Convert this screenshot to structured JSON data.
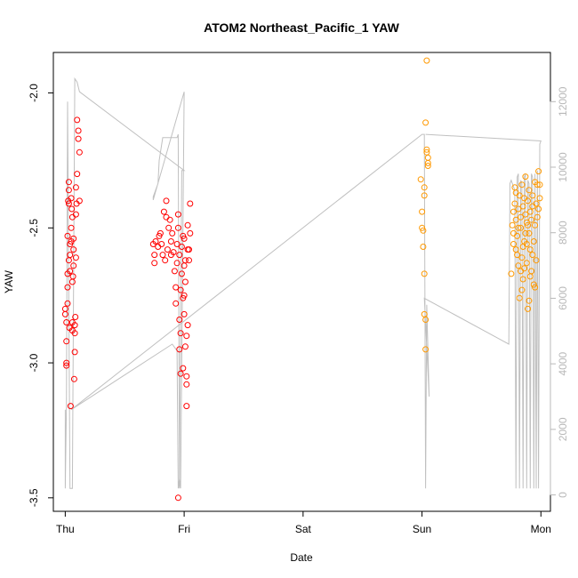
{
  "chart_data": {
    "type": "scatter",
    "title": "ATOM2 Northeast_Pacific_1 YAW",
    "xlabel": "Date",
    "ylabel": "YAW",
    "x_ticks": [
      {
        "day": 0,
        "label": "Thu"
      },
      {
        "day": 1,
        "label": "Fri"
      },
      {
        "day": 2,
        "label": "Sat"
      },
      {
        "day": 3,
        "label": "Sun"
      },
      {
        "day": 4,
        "label": "Mon"
      }
    ],
    "xlim": [
      -0.1,
      4.08
    ],
    "ylim": [
      -3.55,
      -1.85
    ],
    "y_ticks": [
      -3.5,
      -3.0,
      -2.5,
      -2.0
    ],
    "y2lim": [
      -500,
      13500
    ],
    "y2_ticks": [
      0,
      2000,
      4000,
      6000,
      8000,
      10000,
      12000
    ],
    "colors": {
      "red": "#ff0000",
      "orange": "#ff9900",
      "line": "#c0c0c0",
      "axis": "#000000",
      "axis_right": "#b8b8b8"
    },
    "series": [
      {
        "color": "red",
        "points": [
          [
            0.0,
            -2.8
          ],
          [
            0.0,
            -2.82
          ],
          [
            0.01,
            -2.85
          ],
          [
            0.01,
            -2.92
          ],
          [
            0.01,
            -3.0
          ],
          [
            0.01,
            -3.01
          ],
          [
            0.02,
            -2.72
          ],
          [
            0.02,
            -2.67
          ],
          [
            0.02,
            -2.53
          ],
          [
            0.025,
            -2.4
          ],
          [
            0.03,
            -2.41
          ],
          [
            0.03,
            -2.36
          ],
          [
            0.03,
            -2.33
          ],
          [
            0.035,
            -2.87
          ],
          [
            0.04,
            -2.66
          ],
          [
            0.04,
            -2.6
          ],
          [
            0.04,
            -2.56
          ],
          [
            0.045,
            -3.16
          ],
          [
            0.05,
            -2.39
          ],
          [
            0.05,
            -2.5
          ],
          [
            0.05,
            -2.55
          ],
          [
            0.055,
            -2.43
          ],
          [
            0.06,
            -2.88
          ],
          [
            0.06,
            -2.85
          ],
          [
            0.06,
            -2.7
          ],
          [
            0.065,
            -2.68
          ],
          [
            0.07,
            -2.64
          ],
          [
            0.07,
            -2.58
          ],
          [
            0.07,
            -2.54
          ],
          [
            0.075,
            -3.06
          ],
          [
            0.08,
            -2.96
          ],
          [
            0.08,
            -2.89
          ],
          [
            0.08,
            -2.86
          ],
          [
            0.085,
            -2.83
          ],
          [
            0.09,
            -2.61
          ],
          [
            0.09,
            -2.45
          ],
          [
            0.09,
            -2.35
          ],
          [
            0.095,
            -2.41
          ],
          [
            0.1,
            -2.3
          ],
          [
            0.1,
            -2.1
          ],
          [
            0.11,
            -2.14
          ],
          [
            0.11,
            -2.17
          ],
          [
            0.12,
            -2.22
          ],
          [
            0.12,
            -2.4
          ],
          [
            0.06,
            -2.46
          ],
          [
            0.03,
            -2.62
          ],
          [
            0.02,
            -2.78
          ],
          [
            0.74,
            -2.56
          ],
          [
            0.75,
            -2.6
          ],
          [
            0.75,
            -2.63
          ],
          [
            0.76,
            -2.55
          ],
          [
            0.78,
            -2.57
          ],
          [
            0.79,
            -2.53
          ],
          [
            0.8,
            -2.52
          ],
          [
            0.81,
            -2.56
          ],
          [
            0.82,
            -2.6
          ],
          [
            0.83,
            -2.44
          ],
          [
            0.84,
            -2.62
          ],
          [
            0.85,
            -2.46
          ],
          [
            0.85,
            -2.4
          ],
          [
            0.86,
            -2.58
          ],
          [
            0.87,
            -2.5
          ],
          [
            0.88,
            -2.47
          ],
          [
            0.89,
            -2.55
          ],
          [
            0.89,
            -2.6
          ],
          [
            0.9,
            -2.52
          ],
          [
            0.91,
            -2.59
          ],
          [
            0.92,
            -2.66
          ],
          [
            0.93,
            -2.72
          ],
          [
            0.93,
            -2.78
          ],
          [
            0.94,
            -2.63
          ],
          [
            0.94,
            -2.56
          ],
          [
            0.95,
            -2.5
          ],
          [
            0.95,
            -2.45
          ],
          [
            0.96,
            -2.84
          ],
          [
            0.96,
            -2.95
          ],
          [
            0.97,
            -2.73
          ],
          [
            0.97,
            -2.89
          ],
          [
            0.98,
            -2.57
          ],
          [
            0.98,
            -2.67
          ],
          [
            0.99,
            -2.53
          ],
          [
            0.99,
            -3.02
          ],
          [
            1.0,
            -2.54
          ],
          [
            1.0,
            -2.64
          ],
          [
            1.0,
            -2.75
          ],
          [
            1.01,
            -2.62
          ],
          [
            1.01,
            -2.7
          ],
          [
            1.02,
            -3.05
          ],
          [
            1.02,
            -3.16
          ],
          [
            1.02,
            -2.9
          ],
          [
            1.03,
            -2.58
          ],
          [
            1.03,
            -2.49
          ],
          [
            1.04,
            -2.58
          ],
          [
            1.04,
            -2.62
          ],
          [
            1.05,
            -2.52
          ],
          [
            1.05,
            -2.41
          ],
          [
            1.0,
            -2.82
          ],
          [
            0.99,
            -2.76
          ],
          [
            0.97,
            -3.04
          ],
          [
            0.95,
            -3.5
          ],
          [
            0.96,
            -2.6
          ],
          [
            1.02,
            -3.08
          ],
          [
            1.03,
            -2.86
          ],
          [
            1.01,
            -2.94
          ]
        ]
      },
      {
        "color": "orange",
        "points": [
          [
            2.99,
            -2.32
          ],
          [
            3.0,
            -2.44
          ],
          [
            3.0,
            -2.5
          ],
          [
            3.01,
            -2.51
          ],
          [
            3.01,
            -2.57
          ],
          [
            3.02,
            -2.38
          ],
          [
            3.02,
            -2.67
          ],
          [
            3.02,
            -2.82
          ],
          [
            3.03,
            -2.84
          ],
          [
            3.03,
            -2.95
          ],
          [
            3.03,
            -2.11
          ],
          [
            3.04,
            -2.22
          ],
          [
            3.04,
            -2.21
          ],
          [
            3.05,
            -2.24
          ],
          [
            3.05,
            -2.26
          ],
          [
            3.04,
            -1.88
          ],
          [
            3.02,
            -2.35
          ],
          [
            3.05,
            -2.27
          ],
          [
            3.75,
            -2.67
          ],
          [
            3.76,
            -2.49
          ],
          [
            3.77,
            -2.56
          ],
          [
            3.77,
            -2.44
          ],
          [
            3.78,
            -2.35
          ],
          [
            3.78,
            -2.41
          ],
          [
            3.79,
            -2.37
          ],
          [
            3.79,
            -2.47
          ],
          [
            3.8,
            -2.53
          ],
          [
            3.8,
            -2.6
          ],
          [
            3.81,
            -2.43
          ],
          [
            3.81,
            -2.64
          ],
          [
            3.82,
            -2.38
          ],
          [
            3.82,
            -2.76
          ],
          [
            3.83,
            -2.46
          ],
          [
            3.83,
            -2.5
          ],
          [
            3.84,
            -2.34
          ],
          [
            3.84,
            -2.61
          ],
          [
            3.85,
            -2.42
          ],
          [
            3.85,
            -2.69
          ],
          [
            3.86,
            -2.39
          ],
          [
            3.86,
            -2.55
          ],
          [
            3.87,
            -2.45
          ],
          [
            3.87,
            -2.31
          ],
          [
            3.88,
            -2.48
          ],
          [
            3.88,
            -2.63
          ],
          [
            3.89,
            -2.4
          ],
          [
            3.89,
            -2.8
          ],
          [
            3.9,
            -2.52
          ],
          [
            3.9,
            -2.36
          ],
          [
            3.91,
            -2.44
          ],
          [
            3.91,
            -2.58
          ],
          [
            3.92,
            -2.47
          ],
          [
            3.92,
            -2.66
          ],
          [
            3.93,
            -2.42
          ],
          [
            3.93,
            -2.38
          ],
          [
            3.94,
            -2.55
          ],
          [
            3.94,
            -2.71
          ],
          [
            3.95,
            -2.33
          ],
          [
            3.95,
            -2.49
          ],
          [
            3.96,
            -2.41
          ],
          [
            3.96,
            -2.62
          ],
          [
            3.97,
            -2.34
          ],
          [
            3.97,
            -2.46
          ],
          [
            3.98,
            -2.43
          ],
          [
            3.98,
            -2.29
          ],
          [
            3.99,
            -2.39
          ],
          [
            3.99,
            -2.34
          ],
          [
            3.77,
            -2.52
          ],
          [
            3.79,
            -2.58
          ],
          [
            3.81,
            -2.5
          ],
          [
            3.83,
            -2.66
          ],
          [
            3.85,
            -2.57
          ],
          [
            3.87,
            -2.52
          ],
          [
            3.89,
            -2.49
          ],
          [
            3.91,
            -2.68
          ],
          [
            3.93,
            -2.6
          ],
          [
            3.95,
            -2.72
          ],
          [
            3.84,
            -2.73
          ],
          [
            3.86,
            -2.65
          ],
          [
            3.88,
            -2.56
          ],
          [
            3.9,
            -2.77
          ]
        ]
      }
    ],
    "secondary_line": {
      "color": "line",
      "points": [
        [
          0.0,
          2600
        ],
        [
          0.0,
          200
        ],
        [
          0.01,
          2700
        ],
        [
          0.02,
          12000
        ],
        [
          0.04,
          200
        ],
        [
          0.06,
          200
        ],
        [
          0.08,
          12700
        ],
        [
          0.1,
          12600
        ],
        [
          0.12,
          12300
        ],
        [
          1.0,
          9900
        ],
        [
          0.98,
          9900
        ],
        [
          0.96,
          200
        ],
        [
          0.95,
          11000
        ],
        [
          0.94,
          10900
        ],
        [
          0.82,
          10900
        ],
        [
          0.79,
          10200
        ],
        [
          0.78,
          9500
        ],
        [
          0.74,
          9100
        ],
        [
          0.74,
          9000
        ],
        [
          1.0,
          12300
        ],
        [
          0.97,
          200
        ],
        [
          0.96,
          500
        ],
        [
          0.95,
          200
        ],
        [
          0.94,
          4400
        ],
        [
          0.9,
          4600
        ],
        [
          0.05,
          2600
        ],
        [
          3.0,
          11000
        ],
        [
          3.02,
          11000
        ],
        [
          3.03,
          200
        ],
        [
          3.04,
          5800
        ],
        [
          3.06,
          3000
        ],
        [
          3.02,
          6000
        ],
        [
          3.73,
          4600
        ],
        [
          3.74,
          9500
        ],
        [
          3.75,
          9600
        ],
        [
          3.76,
          9500
        ],
        [
          3.77,
          9400
        ],
        [
          3.78,
          9300
        ],
        [
          3.79,
          200
        ],
        [
          3.8,
          9700
        ],
        [
          3.81,
          9800
        ],
        [
          3.82,
          200
        ],
        [
          3.83,
          9600
        ],
        [
          3.84,
          9500
        ],
        [
          3.85,
          200
        ],
        [
          3.86,
          9700
        ],
        [
          3.87,
          9800
        ],
        [
          3.88,
          200
        ],
        [
          3.89,
          9600
        ],
        [
          3.9,
          9500
        ],
        [
          3.91,
          200
        ],
        [
          3.92,
          9800
        ],
        [
          3.93,
          9700
        ],
        [
          3.94,
          200
        ],
        [
          3.95,
          9800
        ],
        [
          3.96,
          200
        ],
        [
          3.97,
          9900
        ],
        [
          3.98,
          200
        ],
        [
          3.99,
          10700
        ],
        [
          4.0,
          10800
        ],
        [
          3.03,
          11000
        ]
      ]
    }
  }
}
